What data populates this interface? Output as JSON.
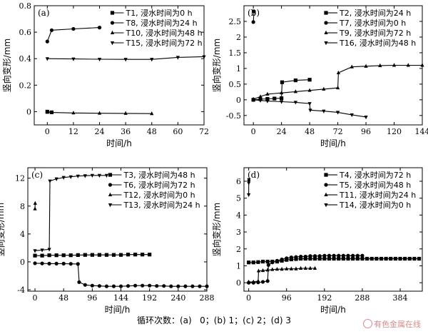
{
  "caption": "循环次数：(a)   0；(b) 1；(c) 2；(d) 3",
  "watermark": "有色金属在线",
  "chart_data": [
    {
      "type": "line",
      "panel_label": "(a)",
      "xlabel": "时间/h",
      "ylabel": "竖向变形/mm",
      "xlim": [
        -6,
        72
      ],
      "ylim": [
        -0.1,
        0.8
      ],
      "xticks": [
        0,
        12,
        24,
        36,
        48,
        60,
        72
      ],
      "yticks": [
        0,
        0.2,
        0.4,
        0.6,
        0.8
      ],
      "legend_position": "top-right",
      "series": [
        {
          "name": "T1, 浸水时间为0 h",
          "marker": "square",
          "x": [
            0,
            2
          ],
          "y": [
            0.0,
            -0.005
          ]
        },
        {
          "name": "T8, 浸水时间为24 h",
          "marker": "circle",
          "x": [
            0,
            2,
            12,
            24
          ],
          "y": [
            0.53,
            0.615,
            0.625,
            0.635
          ]
        },
        {
          "name": "T10, 浸水时间为48 h",
          "marker": "triangle-up",
          "x": [
            0,
            12,
            24,
            36,
            48
          ],
          "y": [
            -0.005,
            -0.01,
            -0.012,
            -0.013,
            -0.015
          ]
        },
        {
          "name": "T15, 浸水时间为72 h",
          "marker": "triangle-down",
          "x": [
            0,
            12,
            24,
            36,
            48,
            60,
            72
          ],
          "y": [
            0.4,
            0.398,
            0.396,
            0.395,
            0.395,
            0.41,
            0.415
          ]
        }
      ]
    },
    {
      "type": "line",
      "panel_label": "(b)",
      "xlabel": "时间/h",
      "ylabel": "竖向变形/mm",
      "xlim": [
        -8,
        144
      ],
      "ylim": [
        -0.8,
        3.0
      ],
      "xticks": [
        0,
        24,
        48,
        72,
        96,
        120,
        144
      ],
      "yticks": [
        -0.5,
        0.0,
        0.5,
        1.0,
        1.5,
        2.0,
        2.5
      ],
      "legend_position": "top-right",
      "series": [
        {
          "name": "T2, 浸水时间为24 h",
          "marker": "square",
          "x": [
            0,
            6,
            12,
            18,
            24,
            24.5,
            36,
            48
          ],
          "y": [
            0.0,
            0.02,
            0.03,
            0.04,
            0.05,
            0.56,
            0.62,
            0.64
          ]
        },
        {
          "name": "T7, 浸水时间为0 h",
          "marker": "circle",
          "x": [
            0,
            0.5
          ],
          "y": [
            2.48,
            2.82
          ]
        },
        {
          "name": "T9, 浸水时间为72 h",
          "marker": "triangle-up",
          "x": [
            0,
            6,
            12,
            24,
            36,
            48,
            60,
            72,
            72.5,
            84,
            96,
            108,
            120,
            132,
            144
          ],
          "y": [
            0.02,
            0.1,
            0.18,
            0.22,
            0.26,
            0.3,
            0.34,
            0.38,
            0.86,
            1.05,
            1.07,
            1.09,
            1.1,
            1.1,
            1.1
          ]
        },
        {
          "name": "T16, 浸水时间为48 h",
          "marker": "triangle-down",
          "x": [
            0,
            6,
            12,
            24,
            36,
            48,
            48.5,
            60,
            72,
            84,
            96
          ],
          "y": [
            0.0,
            -0.02,
            -0.04,
            -0.06,
            -0.08,
            -0.12,
            -0.33,
            -0.36,
            -0.4,
            -0.48,
            -0.55
          ]
        }
      ]
    },
    {
      "type": "line",
      "panel_label": "(c)",
      "xlabel": "时间/h",
      "ylabel": "竖向变形/mm",
      "xlim": [
        -12,
        288
      ],
      "ylim": [
        -4.2,
        13.5
      ],
      "xticks": [
        0,
        48,
        96,
        144,
        192,
        240,
        288
      ],
      "yticks": [
        -4,
        0,
        4,
        8,
        12
      ],
      "legend_position": "top-right",
      "series": [
        {
          "name": "T3, 浸水时间为48 h",
          "marker": "square",
          "x": [
            0,
            12,
            24,
            36,
            48,
            60,
            72,
            84,
            96,
            108,
            120,
            132,
            144,
            156,
            168,
            180,
            192
          ],
          "y": [
            0.9,
            0.9,
            0.95,
            0.95,
            0.95,
            0.95,
            0.98,
            1.0,
            1.0,
            1.0,
            1.0,
            1.0,
            1.0,
            1.05,
            1.05,
            1.05,
            1.05
          ]
        },
        {
          "name": "T6, 浸水时间为72 h",
          "marker": "circle",
          "x": [
            0,
            12,
            24,
            36,
            48,
            60,
            72,
            74,
            84,
            96,
            108,
            120,
            132,
            144,
            156,
            168,
            180,
            192,
            204,
            216,
            228,
            240,
            252,
            264,
            276,
            288
          ],
          "y": [
            -0.2,
            -0.22,
            -0.25,
            -0.25,
            -0.25,
            -0.28,
            -0.3,
            -2.9,
            -3.3,
            -3.4,
            -3.45,
            -3.5,
            -3.5,
            -3.5,
            -3.45,
            -3.4,
            -3.4,
            -3.4,
            -3.45,
            -3.45,
            -3.5,
            -3.5,
            -3.5,
            -3.5,
            -3.5,
            -3.5
          ]
        },
        {
          "name": "T12, 浸水时间为0 h",
          "marker": "triangle-up",
          "x": [
            0,
            0.3
          ],
          "y": [
            7.6,
            8.4
          ]
        },
        {
          "name": "T13, 浸水时间为24 h",
          "marker": "triangle-down",
          "x": [
            0,
            12,
            24,
            25,
            36,
            48,
            60,
            72,
            84,
            96,
            108,
            120
          ],
          "y": [
            1.6,
            1.7,
            1.8,
            11.6,
            11.9,
            12.1,
            12.2,
            12.3,
            12.35,
            12.4,
            12.4,
            12.4
          ]
        }
      ]
    },
    {
      "type": "line",
      "panel_label": "(d)",
      "xlabel": "时间/h",
      "ylabel": "竖向变形/mm",
      "xlim": [
        -12,
        440
      ],
      "ylim": [
        -0.5,
        6.8
      ],
      "xticks": [
        0,
        96,
        192,
        288,
        384
      ],
      "yticks": [
        0,
        1,
        2,
        3,
        4,
        5,
        6
      ],
      "legend_position": "top-right",
      "series": [
        {
          "name": "T4, 浸水时间为72 h",
          "marker": "square",
          "x": [
            0,
            12,
            24,
            36,
            48,
            60,
            72,
            84,
            96,
            108,
            120,
            132,
            144,
            156,
            168,
            180,
            192,
            204,
            216,
            228,
            240,
            252,
            264,
            276,
            288,
            300,
            312,
            324,
            336,
            348,
            360,
            372,
            384,
            396,
            408,
            420,
            432
          ],
          "y": [
            1.2,
            1.2,
            1.22,
            1.25,
            1.25,
            1.25,
            1.25,
            1.3,
            1.35,
            1.38,
            1.4,
            1.42,
            1.42,
            1.42,
            1.42,
            1.42,
            1.42,
            1.42,
            1.42,
            1.42,
            1.42,
            1.42,
            1.42,
            1.42,
            1.42,
            1.42,
            1.42,
            1.42,
            1.42,
            1.42,
            1.42,
            1.42,
            1.42,
            1.42,
            1.42,
            1.42,
            1.42
          ]
        },
        {
          "name": "T5, 浸水时间为48 h",
          "marker": "circle",
          "x": [
            0,
            12,
            24,
            36,
            48,
            50,
            60,
            72,
            84,
            96,
            108,
            120,
            132,
            144,
            156,
            168,
            180,
            192,
            204,
            216,
            228,
            240,
            252,
            264,
            276,
            288
          ],
          "y": [
            0.0,
            0.0,
            0.02,
            0.05,
            0.1,
            1.05,
            1.2,
            1.3,
            1.38,
            1.45,
            1.5,
            1.52,
            1.55,
            1.55,
            1.58,
            1.58,
            1.58,
            1.6,
            1.6,
            1.6,
            1.6,
            1.6,
            1.6,
            1.6,
            1.6,
            1.6
          ]
        },
        {
          "name": "T11, 浸水时间为24 h",
          "marker": "triangle-up",
          "x": [
            0,
            12,
            24,
            25,
            36,
            48,
            60,
            72,
            84,
            96,
            108,
            120,
            132,
            144,
            156,
            168
          ],
          "y": [
            0.05,
            0.05,
            0.1,
            0.7,
            0.72,
            0.75,
            0.78,
            0.8,
            0.8,
            0.82,
            0.82,
            0.82,
            0.85,
            0.85,
            0.85,
            0.85
          ]
        },
        {
          "name": "T14, 浸水时间为0 h",
          "marker": "triangle-down",
          "x": [
            0,
            0.2,
            0.4,
            0.6
          ],
          "y": [
            5.2,
            5.9,
            6.0,
            6.1
          ]
        }
      ]
    }
  ]
}
